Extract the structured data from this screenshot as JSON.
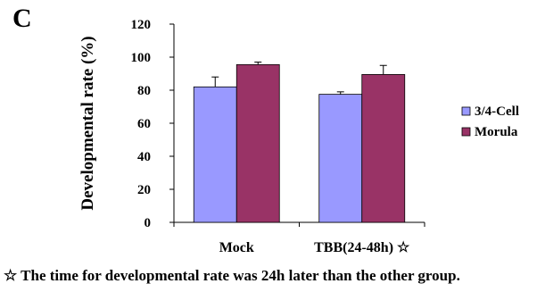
{
  "panel_label": "C",
  "footnote": "☆ The time for developmental rate was 24h later than the other group.",
  "chart_data": {
    "type": "bar",
    "title": "",
    "xlabel": "",
    "ylabel": "Developmental rate (%)",
    "ylim": [
      0,
      120
    ],
    "yticks": [
      0,
      20,
      40,
      60,
      80,
      100,
      120
    ],
    "categories": [
      "Mock",
      "TBB(24-48h) ☆"
    ],
    "series": [
      {
        "name": "3/4-Cell",
        "values": [
          82,
          77.5
        ],
        "errors": [
          6,
          1.5
        ],
        "color": "#9999ff"
      },
      {
        "name": "Morula",
        "values": [
          95.5,
          89.5
        ],
        "errors": [
          1.5,
          5.5
        ],
        "color": "#993366"
      }
    ],
    "legend_position": "right",
    "grid": false
  }
}
